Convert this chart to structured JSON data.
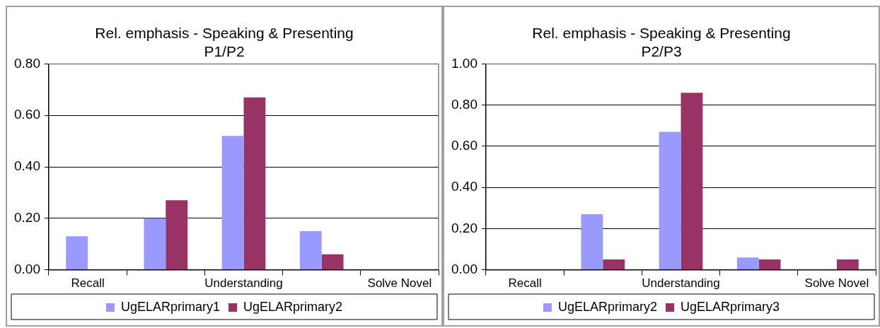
{
  "chart_data": [
    {
      "type": "bar",
      "title": "Rel. emphasis - Speaking & Presenting\nP1/P2",
      "categories": [
        "Recall",
        null,
        "Understanding",
        null,
        "Solve Novel"
      ],
      "series": [
        {
          "name": "UgELARprimary1",
          "color": "#9999ff",
          "values": [
            0.13,
            0.2,
            0.52,
            0.15,
            0
          ]
        },
        {
          "name": "UgELARprimary2",
          "color": "#993366",
          "values": [
            0,
            0.27,
            0.67,
            0.06,
            0
          ]
        }
      ],
      "ylim": [
        0,
        0.8
      ],
      "yticks": [
        {
          "value": 0,
          "label": "0.00"
        },
        {
          "value": 0.2,
          "label": "0.20"
        },
        {
          "value": 0.4,
          "label": "0.40"
        },
        {
          "value": 0.6,
          "label": "0.60"
        },
        {
          "value": 0.8,
          "label": "0.80"
        }
      ],
      "grid": "y",
      "legend": "bottom"
    },
    {
      "type": "bar",
      "title": "Rel. emphasis - Speaking & Presenting\nP2/P3",
      "categories": [
        "Recall",
        null,
        "Understanding",
        null,
        "Solve Novel"
      ],
      "series": [
        {
          "name": "UgELARprimary2",
          "color": "#9999ff",
          "values": [
            0,
            0.27,
            0.67,
            0.06,
            0
          ]
        },
        {
          "name": "UgELARprimary3",
          "color": "#993366",
          "values": [
            0,
            0.05,
            0.86,
            0.05,
            0.05
          ]
        }
      ],
      "ylim": [
        0,
        1
      ],
      "yticks": [
        {
          "value": 0,
          "label": "0.00"
        },
        {
          "value": 0.2,
          "label": "0.20"
        },
        {
          "value": 0.4,
          "label": "0.40"
        },
        {
          "value": 0.6,
          "label": "0.60"
        },
        {
          "value": 0.8,
          "label": "0.80"
        },
        {
          "value": 1,
          "label": "1.00"
        }
      ],
      "grid": "y",
      "legend": "bottom"
    }
  ]
}
